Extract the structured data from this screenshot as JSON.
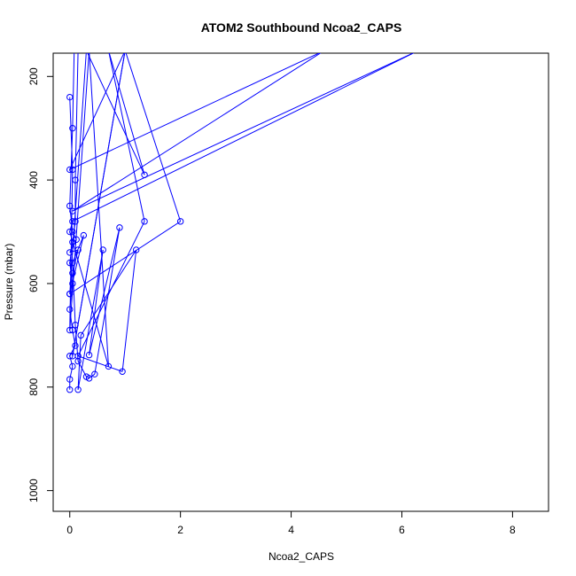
{
  "chart_data": {
    "type": "line",
    "title": "ATOM2 Southbound Ncoa2_CAPS",
    "xlabel": "Ncoa2_CAPS",
    "ylabel": "Pressure (mbar)",
    "xlim": [
      -0.3,
      8.65
    ],
    "ylim": [
      1040,
      155
    ],
    "y_reversed": true,
    "x_ticks": [
      0,
      2,
      4,
      6,
      8
    ],
    "y_ticks": [
      200,
      400,
      600,
      800,
      1000
    ],
    "grid": false,
    "color": "#0000ff",
    "series": [
      {
        "values": [
          [
            0.0,
            805
          ],
          [
            0.0,
            785
          ],
          [
            0.05,
            760
          ],
          [
            0.0,
            740
          ],
          [
            0.1,
            720
          ],
          [
            0.05,
            690
          ],
          [
            0.0,
            650
          ],
          [
            0.05,
            600
          ],
          [
            0.0,
            560
          ],
          [
            0.05,
            520
          ],
          [
            0.1,
            480
          ],
          [
            0.1,
            400
          ],
          [
            0.15,
            150
          ],
          [
            0.08,
            150
          ],
          [
            0.05,
            300
          ],
          [
            0.0,
            450
          ],
          [
            0.05,
            500
          ],
          [
            0.12,
            515
          ],
          [
            0.0,
            540
          ],
          [
            0.15,
            535
          ],
          [
            0.05,
            580
          ],
          [
            0.0,
            620
          ],
          [
            0.25,
            507
          ],
          [
            0.05,
            560
          ],
          [
            0.1,
            680
          ],
          [
            0.15,
            750
          ],
          [
            0.3,
            780
          ],
          [
            0.35,
            783
          ],
          [
            0.45,
            775
          ],
          [
            0.9,
            492
          ],
          [
            0.35,
            738
          ],
          [
            0.6,
            535
          ],
          [
            0.15,
            805
          ],
          [
            0.2,
            700
          ],
          [
            1.2,
            535
          ],
          [
            0.95,
            770
          ],
          [
            0.15,
            740
          ],
          [
            1.35,
            480
          ],
          [
            0.7,
            150
          ],
          [
            1.35,
            390
          ],
          [
            0.3,
            150
          ],
          [
            0.0,
            620
          ],
          [
            2.0,
            480
          ],
          [
            1.0,
            150
          ],
          [
            0.05,
            740
          ],
          [
            1.0,
            150
          ],
          [
            0.0,
            380
          ],
          [
            4.6,
            150
          ],
          [
            0.05,
            460
          ],
          [
            6.3,
            150
          ],
          [
            0.05,
            480
          ],
          [
            0.0,
            500
          ],
          [
            0.7,
            760
          ],
          [
            0.35,
            150
          ],
          [
            0.0,
            690
          ],
          [
            0.05,
            380
          ],
          [
            0.0,
            240
          ]
        ]
      }
    ]
  }
}
